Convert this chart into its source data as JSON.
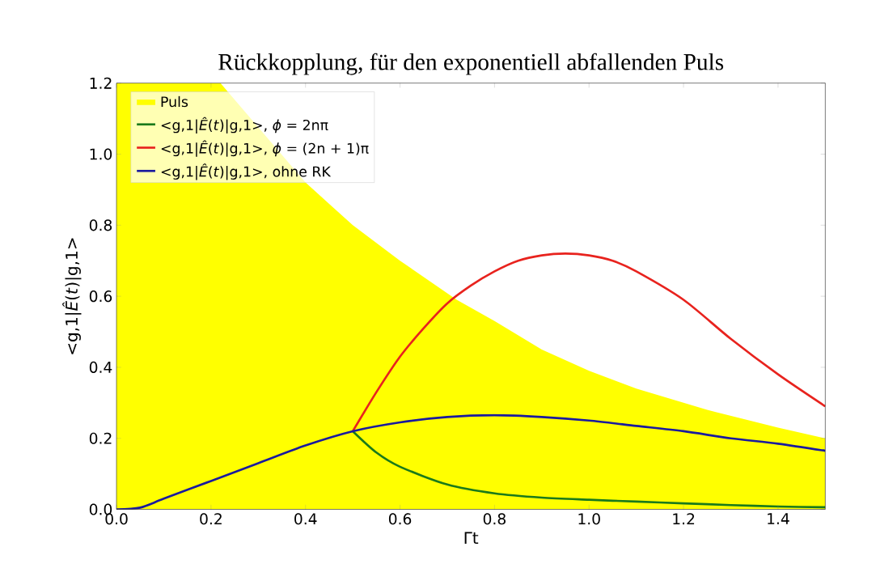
{
  "chart_data": {
    "type": "line",
    "title": "Rückkopplung, für den exponentiell abfallenden Puls",
    "xlabel": "Γt",
    "ylabel": "<g,1|*Ê*(*t*)|g,1>",
    "xlim": [
      0,
      1.5
    ],
    "ylim": [
      0,
      1.2
    ],
    "xticks": [
      {
        "value": 0,
        "label": "0.0"
      },
      {
        "value": 0.2,
        "label": "0.2"
      },
      {
        "value": 0.4,
        "label": "0.4"
      },
      {
        "value": 0.6,
        "label": "0.6"
      },
      {
        "value": 0.8,
        "label": "0.8"
      },
      {
        "value": 1.0,
        "label": "1.0"
      },
      {
        "value": 1.2,
        "label": "1.2"
      },
      {
        "value": 1.4,
        "label": "1.4"
      }
    ],
    "yticks": [
      {
        "value": 0,
        "label": "0.0"
      },
      {
        "value": 0.2,
        "label": "0.2"
      },
      {
        "value": 0.4,
        "label": "0.4"
      },
      {
        "value": 0.6,
        "label": "0.6"
      },
      {
        "value": 0.8,
        "label": "0.8"
      },
      {
        "value": 1.0,
        "label": "1.0"
      },
      {
        "value": 1.2,
        "label": "1.2"
      }
    ],
    "legend": "top left",
    "grid": false,
    "marker": "none",
    "line_style": "solid",
    "series": [
      {
        "name": "Puls",
        "type": "area",
        "color": "#ffff00",
        "x": [
          0,
          0.22,
          0.3,
          0.4,
          0.5,
          0.6,
          0.72,
          0.8,
          0.9,
          1.0,
          1.1,
          1.25,
          1.4,
          1.5
        ],
        "values": [
          1.2,
          1.2,
          null,
          0.92,
          0.8,
          0.7,
          0.59,
          0.53,
          0.45,
          0.39,
          0.34,
          0.28,
          0.23,
          0.2
        ]
      },
      {
        "name": "<g,1|*Ê*(*t*)|g,1>, *ϕ* = 2nπ",
        "color": "#1a7a1a",
        "x": [
          0.5,
          0.55,
          0.6,
          0.7,
          0.8,
          0.9,
          1.0,
          1.1,
          1.2,
          1.3,
          1.4,
          1.5
        ],
        "values": [
          0.22,
          0.16,
          0.12,
          0.07,
          0.045,
          0.033,
          0.027,
          0.022,
          0.017,
          0.012,
          0.008,
          0.006
        ]
      },
      {
        "name": "<g,1|*Ê*(*t*)|g,1>, *ϕ* = (2n + 1)π",
        "color": "#e8231e",
        "x": [
          0.5,
          0.55,
          0.6,
          0.65,
          0.7,
          0.75,
          0.8,
          0.85,
          0.9,
          0.95,
          1.0,
          1.05,
          1.1,
          1.2,
          1.3,
          1.4,
          1.5
        ],
        "values": [
          0.22,
          0.33,
          0.43,
          0.51,
          0.58,
          0.63,
          0.67,
          0.7,
          0.715,
          0.72,
          0.715,
          0.7,
          0.67,
          0.59,
          0.48,
          0.38,
          0.29
        ]
      },
      {
        "name": "<g,1|*Ê*(*t*)|g,1>, ohne RK",
        "color": "#1a1a9e",
        "x": [
          0,
          0.05,
          0.1,
          0.2,
          0.3,
          0.4,
          0.5,
          0.6,
          0.7,
          0.8,
          0.9,
          1.0,
          1.1,
          1.2,
          1.3,
          1.4,
          1.5
        ],
        "values": [
          0,
          0.005,
          0.03,
          0.08,
          0.13,
          0.18,
          0.22,
          0.245,
          0.26,
          0.265,
          0.26,
          0.25,
          0.235,
          0.22,
          0.2,
          0.185,
          0.165
        ]
      }
    ]
  }
}
